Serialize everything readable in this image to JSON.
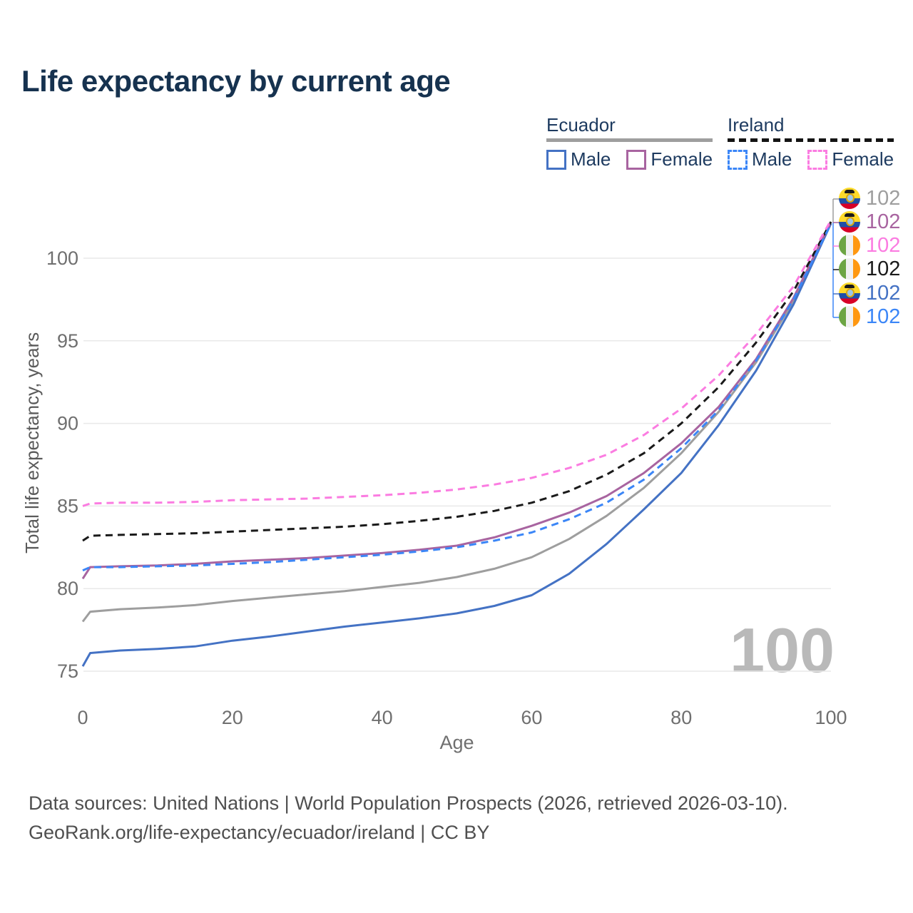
{
  "title": "Life expectancy by current age",
  "legend": {
    "groups": [
      {
        "label": "Ecuador",
        "underline_style": "solid",
        "underline_color": "#9e9e9e",
        "items": [
          {
            "label": "Male",
            "color": "#4472c4",
            "dash": false
          },
          {
            "label": "Female",
            "color": "#a864a0",
            "dash": false
          }
        ]
      },
      {
        "label": "Ireland",
        "underline_style": "dashed",
        "underline_color": "#141414",
        "items": [
          {
            "label": "Male",
            "color": "#3b86f7",
            "dash": true
          },
          {
            "label": "Female",
            "color": "#fb7ce1",
            "dash": true
          }
        ]
      }
    ]
  },
  "chart_data": {
    "type": "line",
    "title": "Life expectancy by current age",
    "xlabel": "Age",
    "ylabel": "Total life expectancy, years",
    "xticks": [
      0,
      20,
      40,
      60,
      80,
      100
    ],
    "yticks": [
      75,
      80,
      85,
      90,
      95,
      100
    ],
    "xlim": [
      0,
      100
    ],
    "ylim": [
      74.5,
      103
    ],
    "grid": "horizontal",
    "x": [
      0,
      1,
      5,
      10,
      15,
      20,
      25,
      30,
      35,
      40,
      45,
      50,
      55,
      60,
      65,
      70,
      75,
      80,
      85,
      90,
      95,
      100
    ],
    "series": [
      {
        "name": "Ecuador",
        "country": "Ecuador",
        "sex": "Both",
        "color": "#9e9e9e",
        "dash": false,
        "values": [
          78.0,
          78.6,
          78.75,
          78.85,
          79.0,
          79.25,
          79.45,
          79.65,
          79.85,
          80.1,
          80.35,
          80.7,
          81.2,
          81.9,
          83.0,
          84.4,
          86.1,
          88.2,
          90.7,
          93.7,
          97.4,
          102.1
        ]
      },
      {
        "name": "Ecuador Male",
        "country": "Ecuador",
        "sex": "Male",
        "color": "#4472c4",
        "dash": false,
        "values": [
          75.3,
          76.1,
          76.25,
          76.35,
          76.5,
          76.85,
          77.1,
          77.4,
          77.7,
          77.95,
          78.2,
          78.5,
          78.95,
          79.6,
          80.9,
          82.7,
          84.8,
          87.0,
          89.9,
          93.2,
          97.2,
          102.1
        ]
      },
      {
        "name": "Ecuador Female",
        "country": "Ecuador",
        "sex": "Female",
        "color": "#a864a0",
        "dash": false,
        "values": [
          80.6,
          81.3,
          81.35,
          81.4,
          81.5,
          81.65,
          81.75,
          81.85,
          82.0,
          82.15,
          82.35,
          82.6,
          83.1,
          83.8,
          84.6,
          85.6,
          87.0,
          88.8,
          91.0,
          93.9,
          97.6,
          102.2
        ]
      },
      {
        "name": "Ireland",
        "country": "Ireland",
        "sex": "Both",
        "color": "#1a1a1a",
        "dash": true,
        "values": [
          82.9,
          83.2,
          83.25,
          83.3,
          83.35,
          83.45,
          83.55,
          83.65,
          83.75,
          83.9,
          84.1,
          84.35,
          84.7,
          85.2,
          85.9,
          86.9,
          88.2,
          90.0,
          92.2,
          94.9,
          98.0,
          102.2
        ]
      },
      {
        "name": "Ireland Male",
        "country": "Ireland",
        "sex": "Male",
        "color": "#3b86f7",
        "dash": true,
        "values": [
          81.1,
          81.3,
          81.3,
          81.35,
          81.4,
          81.5,
          81.6,
          81.75,
          81.9,
          82.05,
          82.25,
          82.5,
          82.9,
          83.4,
          84.2,
          85.2,
          86.6,
          88.5,
          90.8,
          93.8,
          97.5,
          102.1
        ]
      },
      {
        "name": "Ireland Female",
        "country": "Ireland",
        "sex": "Female",
        "color": "#fb7ce1",
        "dash": true,
        "values": [
          85.0,
          85.15,
          85.2,
          85.2,
          85.25,
          85.35,
          85.4,
          85.45,
          85.55,
          85.65,
          85.8,
          86.0,
          86.3,
          86.7,
          87.3,
          88.1,
          89.3,
          90.9,
          92.9,
          95.4,
          98.3,
          102.3
        ]
      }
    ]
  },
  "end_labels": [
    {
      "flag": "ecuador",
      "series": "Ecuador",
      "value": "102",
      "color": "#9e9e9e"
    },
    {
      "flag": "ecuador",
      "series": "Ecuador Female",
      "value": "102",
      "color": "#a864a0"
    },
    {
      "flag": "ireland",
      "series": "Ireland Female",
      "value": "102",
      "color": "#fb7ce1"
    },
    {
      "flag": "ireland",
      "series": "Ireland",
      "value": "102",
      "color": "#1a1a1a"
    },
    {
      "flag": "ecuador",
      "series": "Ecuador Male",
      "value": "102",
      "color": "#4472c4"
    },
    {
      "flag": "ireland",
      "series": "Ireland Male",
      "value": "102",
      "color": "#3b86f7"
    }
  ],
  "watermark": "100",
  "footer": {
    "line1": "Data sources: United Nations | World Population Prospects (2026, retrieved 2026-03-10).",
    "line2": "GeoRank.org/life-expectancy/ecuador/ireland | CC BY"
  }
}
